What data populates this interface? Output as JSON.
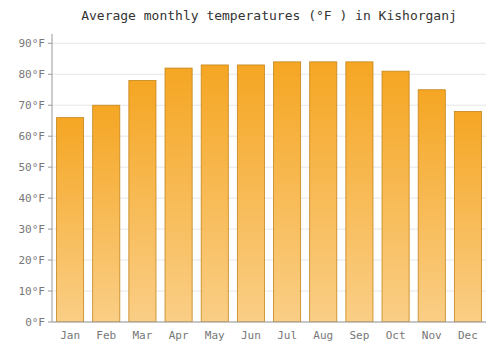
{
  "chart_data": {
    "type": "bar",
    "title": "Average monthly temperatures (°F ) in Kishorganj",
    "categories": [
      "Jan",
      "Feb",
      "Mar",
      "Apr",
      "May",
      "Jun",
      "Jul",
      "Aug",
      "Sep",
      "Oct",
      "Nov",
      "Dec"
    ],
    "values": [
      66,
      70,
      78,
      82,
      83,
      83,
      84,
      84,
      84,
      81,
      75,
      68
    ],
    "color": "#F5A623",
    "ylim": [
      0,
      93
    ],
    "yticks": [
      {
        "value": 0,
        "label": "0°F"
      },
      {
        "value": 10,
        "label": "10°F"
      },
      {
        "value": 20,
        "label": "20°F"
      },
      {
        "value": 30,
        "label": "30°F"
      },
      {
        "value": 40,
        "label": "40°F"
      },
      {
        "value": 50,
        "label": "50°F"
      },
      {
        "value": 60,
        "label": "60°F"
      },
      {
        "value": 70,
        "label": "70°F"
      },
      {
        "value": 80,
        "label": "80°F"
      },
      {
        "value": 90,
        "label": "90°F"
      }
    ],
    "grid": true
  }
}
